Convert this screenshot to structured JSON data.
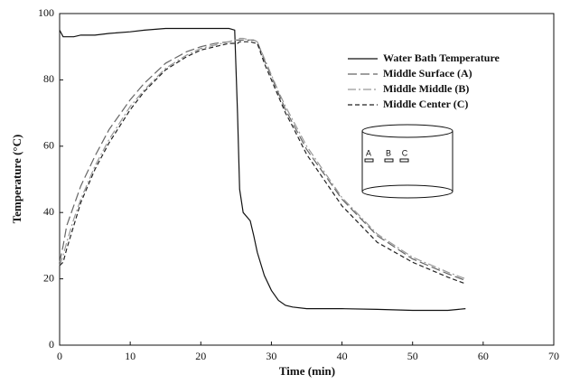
{
  "chart_data": {
    "type": "line",
    "xlabel": "Time (min)",
    "ylabel": "Temperature (°C)",
    "x": [
      0,
      0.5,
      1,
      2,
      3,
      5,
      7,
      10,
      12,
      15,
      18,
      20,
      22,
      24,
      24.8,
      25.2,
      25.5,
      26,
      27,
      27.5,
      28,
      29,
      30,
      31,
      32,
      33,
      35,
      40,
      45,
      50,
      55,
      57.5
    ],
    "series": [
      {
        "name": "Water Bath Temperature",
        "color": "#111111",
        "dash": "solid",
        "values": [
          95,
          93,
          93,
          93,
          93.5,
          93.5,
          94,
          94.5,
          95,
          95.5,
          95.5,
          95.5,
          95.5,
          95.5,
          95,
          70,
          47,
          40,
          37.5,
          33,
          28,
          21,
          16.5,
          13.5,
          12,
          11.5,
          11,
          11,
          10.8,
          10.5,
          10.5,
          11
        ]
      },
      {
        "name": "Middle Surface (A)",
        "color": "#666666",
        "dash": "long",
        "values": [
          25,
          30,
          36,
          42,
          48,
          57,
          65,
          74,
          79,
          85,
          88.5,
          90,
          91,
          91.5,
          92,
          92,
          92,
          92,
          92,
          92,
          91.5,
          86,
          81,
          76,
          71,
          67,
          59,
          44,
          33,
          26,
          21.5,
          19.5
        ]
      },
      {
        "name": "Middle Middle (B)",
        "color": "#999999",
        "dash": "dashdot",
        "values": [
          24,
          27,
          31,
          38,
          44,
          54,
          62,
          72,
          77,
          83.5,
          87.5,
          89.5,
          90.5,
          91.5,
          92,
          92,
          92.5,
          92.5,
          92,
          92,
          91.5,
          86.5,
          81.5,
          76.5,
          72,
          68,
          60,
          44.5,
          33.5,
          26.5,
          22,
          20
        ]
      },
      {
        "name": "Middle Center (C)",
        "color": "#222222",
        "dash": "short",
        "values": [
          24,
          25,
          29,
          36,
          43,
          53,
          61,
          71,
          76.5,
          83,
          87,
          89,
          90,
          91,
          91,
          91,
          91.5,
          91.5,
          91.5,
          91.2,
          91,
          85,
          80,
          75,
          70,
          66,
          57.5,
          42,
          31,
          25,
          20.5,
          18.5
        ]
      }
    ],
    "xlim": [
      0,
      70
    ],
    "xticks": [
      0,
      10,
      20,
      30,
      40,
      50,
      60,
      70
    ],
    "ylim": [
      0,
      100
    ],
    "yticks": [
      0,
      20,
      40,
      60,
      80,
      100
    ],
    "inset": {
      "labels": [
        "A",
        "B",
        "C"
      ]
    }
  }
}
